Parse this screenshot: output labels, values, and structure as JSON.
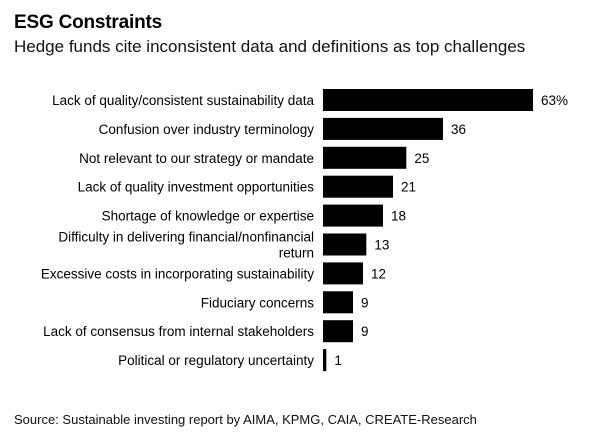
{
  "title": "ESG Constraints",
  "subtitle": "Hedge funds cite inconsistent data and definitions as top challenges",
  "source": "Source: Sustainable investing report by AIMA, KPMG, CAIA, CREATE-Research",
  "chart_data": {
    "type": "bar",
    "orientation": "horizontal",
    "title": "ESG Constraints",
    "subtitle": "Hedge funds cite inconsistent data and definitions as top challenges",
    "categories": [
      [
        "Lack of quality/consistent sustainability data"
      ],
      [
        "Confusion over industry terminology"
      ],
      [
        "Not relevant to our strategy or mandate"
      ],
      [
        "Lack of quality investment opportunities"
      ],
      [
        "Shortage of knowledge or expertise"
      ],
      [
        "Difficulty in delivering financial/nonfinancial",
        "return"
      ],
      [
        "Excessive costs in incorporating sustainability"
      ],
      [
        "Fiduciary concerns"
      ],
      [
        "Lack of consensus from internal stakeholders"
      ],
      [
        "Political or regulatory uncertainty"
      ]
    ],
    "values": [
      63,
      36,
      25,
      21,
      18,
      13,
      12,
      9,
      9,
      1
    ],
    "value_labels": [
      "63%",
      "36",
      "25",
      "21",
      "18",
      "13",
      "12",
      "9",
      "9",
      "1"
    ],
    "xlim": [
      0,
      63
    ],
    "grid": false,
    "bar_color": "#000000"
  }
}
